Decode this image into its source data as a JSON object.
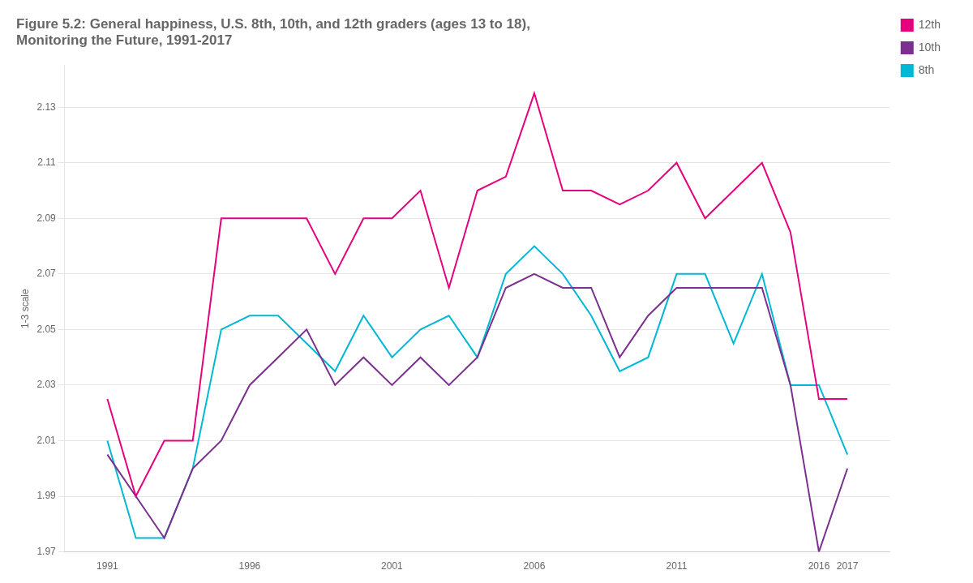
{
  "chart_data": {
    "type": "line",
    "title": [
      "Figure 5.2: General happiness, U.S. 8th, 10th, and 12th graders (ages 13 to 18),",
      "Monitoring the Future, 1991-2017"
    ],
    "ylabel": "1-3 scale",
    "x": [
      1991,
      1992,
      1993,
      1994,
      1995,
      1996,
      1997,
      1998,
      1999,
      2000,
      2001,
      2002,
      2003,
      2004,
      2005,
      2006,
      2007,
      2008,
      2009,
      2010,
      2011,
      2012,
      2013,
      2014,
      2015,
      2016,
      2017
    ],
    "series": [
      {
        "name": "12th",
        "color": "#e5007d",
        "values": [
          2.025,
          1.99,
          2.01,
          2.01,
          2.09,
          2.09,
          2.09,
          2.09,
          2.07,
          2.09,
          2.09,
          2.1,
          2.065,
          2.1,
          2.105,
          2.135,
          2.1,
          2.1,
          2.095,
          2.1,
          2.11,
          2.09,
          2.1,
          2.11,
          2.085,
          2.025,
          2.025
        ]
      },
      {
        "name": "10th",
        "color": "#7b2f8e",
        "values": [
          2.005,
          1.99,
          1.975,
          2.0,
          2.01,
          2.03,
          2.04,
          2.05,
          2.03,
          2.04,
          2.03,
          2.04,
          2.03,
          2.04,
          2.065,
          2.07,
          2.065,
          2.065,
          2.04,
          2.055,
          2.065,
          2.065,
          2.065,
          2.065,
          2.03,
          1.97,
          2.0
        ]
      },
      {
        "name": "8th",
        "color": "#00b8d4",
        "values": [
          2.01,
          1.975,
          1.975,
          2.0,
          2.05,
          2.055,
          2.055,
          2.045,
          2.035,
          2.055,
          2.04,
          2.05,
          2.055,
          2.04,
          2.07,
          2.08,
          2.07,
          2.055,
          2.035,
          2.04,
          2.07,
          2.07,
          2.045,
          2.07,
          2.03,
          2.03,
          2.005
        ]
      }
    ],
    "xlim": [
      1989.5,
      2018.5
    ],
    "xticks": [
      1991,
      1996,
      2001,
      2006,
      2011,
      2016,
      2017
    ],
    "ylim": [
      1.97,
      2.145
    ],
    "yticks": [
      1.97,
      1.99,
      2.01,
      2.03,
      2.05,
      2.07,
      2.09,
      2.11,
      2.13
    ],
    "grid": "y",
    "legend": "right"
  }
}
